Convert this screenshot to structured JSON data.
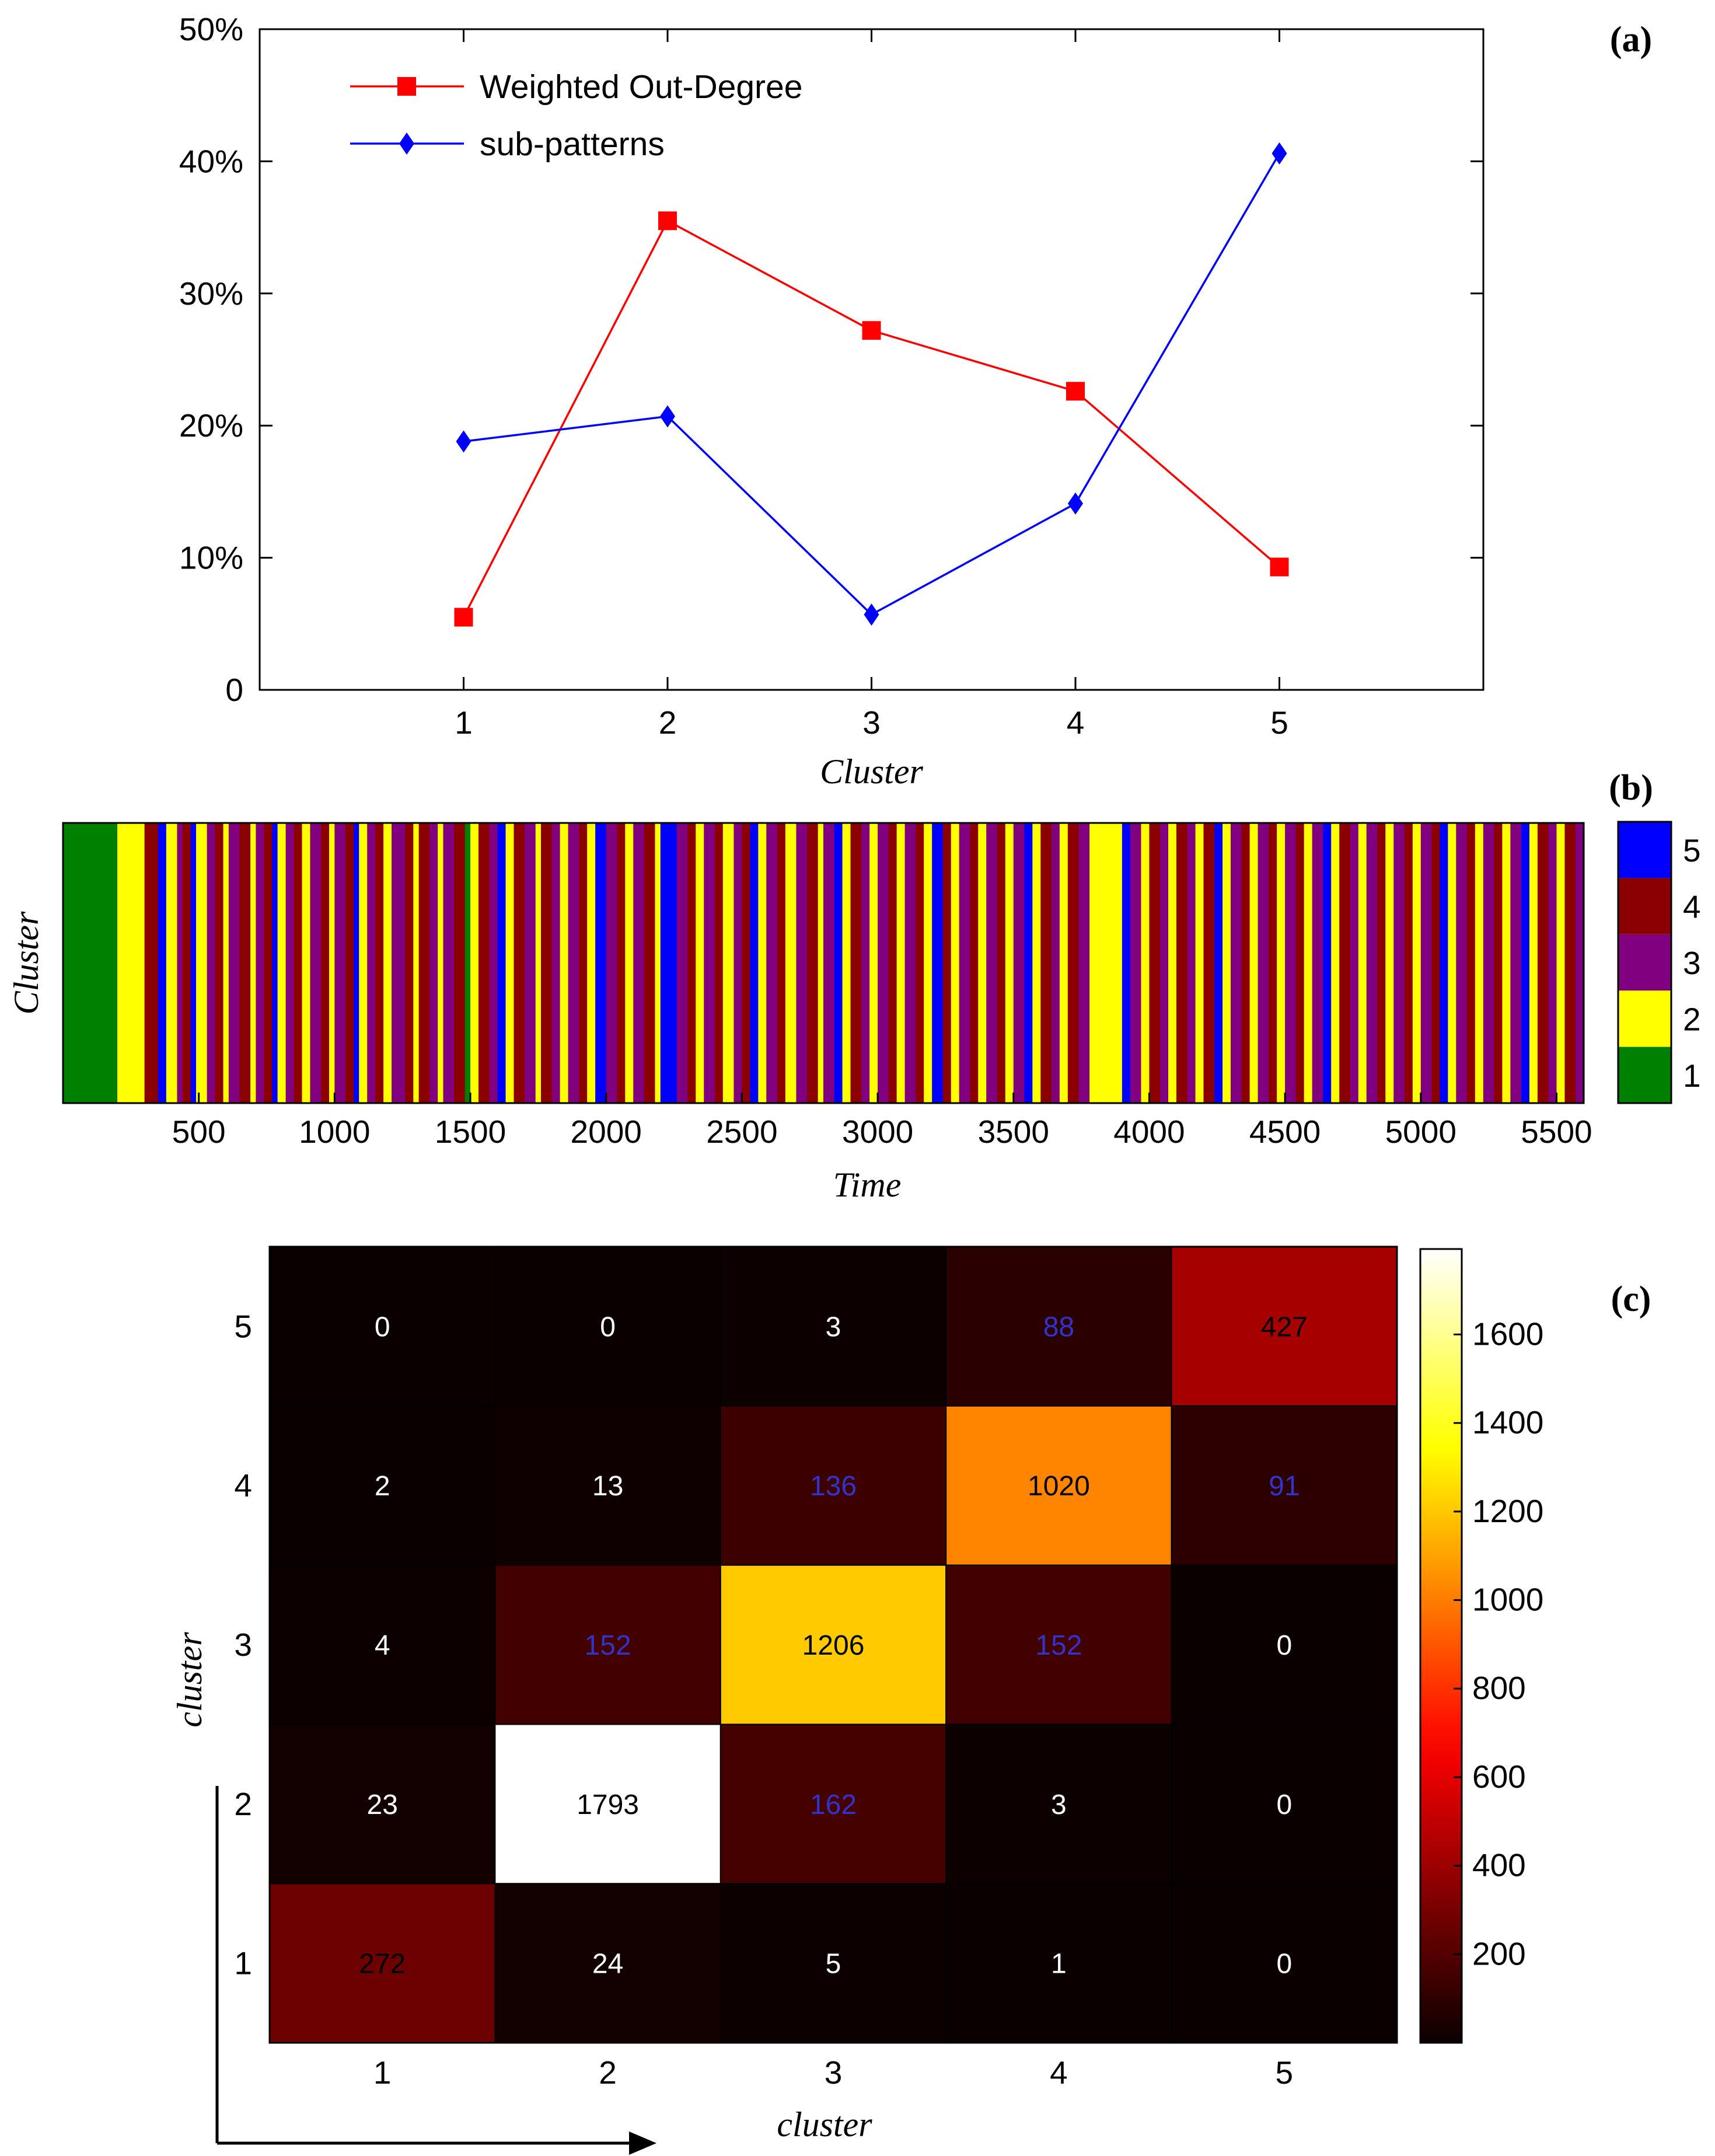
{
  "chart_data": [
    {
      "panel": "(a)",
      "type": "line",
      "x": [
        1,
        2,
        3,
        4,
        5
      ],
      "xlabel": "Cluster",
      "ylabel": "",
      "xlim": [
        0,
        6
      ],
      "ylim": [
        0,
        50
      ],
      "yticks": [
        "0",
        "10%",
        "20%",
        "30%",
        "40%",
        "50%"
      ],
      "xticks": [
        "1",
        "2",
        "3",
        "4",
        "5"
      ],
      "legend_position": "top-left",
      "series": [
        {
          "name": "Weighted Out-Degree",
          "color": "#ff0000",
          "marker": "square",
          "values": [
            5.5,
            35.5,
            27.2,
            22.6,
            9.3
          ]
        },
        {
          "name": "sub-patterns",
          "color": "#0000ff",
          "marker": "diamond",
          "values": [
            18.8,
            20.7,
            5.7,
            14.1,
            40.6
          ]
        }
      ]
    },
    {
      "panel": "(b)",
      "type": "heatmap",
      "title": "",
      "xlabel": "Time",
      "ylabel": "Cluster",
      "xlim": [
        0,
        5600
      ],
      "xticks": [
        "500",
        "1000",
        "1500",
        "2000",
        "2500",
        "3000",
        "3500",
        "4000",
        "4500",
        "5000",
        "5500"
      ],
      "colorbar_labels": [
        "1",
        "2",
        "3",
        "4",
        "5"
      ],
      "colors": {
        "1": "#008000",
        "2": "#ffff00",
        "3": "#800080",
        "4": "#8b0000",
        "5": "#0000ff"
      },
      "segments": [
        [
          0,
          200,
          1
        ],
        [
          200,
          300,
          2
        ],
        [
          300,
          350,
          4
        ],
        [
          350,
          380,
          5
        ],
        [
          380,
          420,
          2
        ],
        [
          420,
          440,
          3
        ],
        [
          440,
          470,
          4
        ],
        [
          470,
          490,
          5
        ],
        [
          490,
          530,
          2
        ],
        [
          530,
          560,
          3
        ],
        [
          560,
          590,
          4
        ],
        [
          590,
          610,
          2
        ],
        [
          610,
          650,
          3
        ],
        [
          650,
          690,
          4
        ],
        [
          690,
          710,
          2
        ],
        [
          710,
          740,
          3
        ],
        [
          740,
          770,
          4
        ],
        [
          770,
          790,
          5
        ],
        [
          790,
          820,
          2
        ],
        [
          820,
          850,
          3
        ],
        [
          850,
          880,
          4
        ],
        [
          880,
          910,
          2
        ],
        [
          910,
          950,
          3
        ],
        [
          950,
          980,
          4
        ],
        [
          980,
          1000,
          2
        ],
        [
          1000,
          1040,
          3
        ],
        [
          1040,
          1070,
          4
        ],
        [
          1070,
          1090,
          5
        ],
        [
          1090,
          1120,
          2
        ],
        [
          1120,
          1150,
          3
        ],
        [
          1150,
          1180,
          4
        ],
        [
          1180,
          1210,
          2
        ],
        [
          1210,
          1260,
          3
        ],
        [
          1260,
          1290,
          4
        ],
        [
          1290,
          1310,
          2
        ],
        [
          1310,
          1350,
          4
        ],
        [
          1350,
          1380,
          3
        ],
        [
          1380,
          1400,
          2
        ],
        [
          1400,
          1440,
          3
        ],
        [
          1440,
          1480,
          4
        ],
        [
          1480,
          1500,
          1
        ],
        [
          1500,
          1530,
          2
        ],
        [
          1530,
          1570,
          4
        ],
        [
          1570,
          1600,
          3
        ],
        [
          1600,
          1630,
          5
        ],
        [
          1630,
          1660,
          2
        ],
        [
          1660,
          1700,
          4
        ],
        [
          1700,
          1740,
          3
        ],
        [
          1740,
          1760,
          2
        ],
        [
          1760,
          1800,
          4
        ],
        [
          1800,
          1830,
          3
        ],
        [
          1830,
          1860,
          2
        ],
        [
          1860,
          1900,
          3
        ],
        [
          1900,
          1930,
          4
        ],
        [
          1930,
          1960,
          2
        ],
        [
          1960,
          2000,
          5
        ],
        [
          2000,
          2040,
          3
        ],
        [
          2040,
          2070,
          4
        ],
        [
          2070,
          2100,
          2
        ],
        [
          2100,
          2140,
          3
        ],
        [
          2140,
          2180,
          4
        ],
        [
          2180,
          2200,
          2
        ],
        [
          2200,
          2260,
          5
        ],
        [
          2260,
          2300,
          3
        ],
        [
          2300,
          2330,
          4
        ],
        [
          2330,
          2360,
          2
        ],
        [
          2360,
          2400,
          3
        ],
        [
          2400,
          2430,
          4
        ],
        [
          2430,
          2470,
          2
        ],
        [
          2470,
          2500,
          3
        ],
        [
          2500,
          2530,
          4
        ],
        [
          2530,
          2560,
          5
        ],
        [
          2560,
          2590,
          2
        ],
        [
          2590,
          2630,
          3
        ],
        [
          2630,
          2660,
          4
        ],
        [
          2660,
          2700,
          2
        ],
        [
          2700,
          2740,
          3
        ],
        [
          2740,
          2780,
          4
        ],
        [
          2780,
          2800,
          2
        ],
        [
          2800,
          2840,
          3
        ],
        [
          2840,
          2870,
          5
        ],
        [
          2870,
          2900,
          2
        ],
        [
          2900,
          2940,
          4
        ],
        [
          2940,
          2970,
          3
        ],
        [
          2970,
          3000,
          2
        ],
        [
          3000,
          3040,
          3
        ],
        [
          3040,
          3070,
          4
        ],
        [
          3070,
          3100,
          2
        ],
        [
          3100,
          3140,
          3
        ],
        [
          3140,
          3170,
          4
        ],
        [
          3170,
          3200,
          2
        ],
        [
          3200,
          3240,
          5
        ],
        [
          3240,
          3270,
          4
        ],
        [
          3270,
          3300,
          2
        ],
        [
          3300,
          3340,
          3
        ],
        [
          3340,
          3370,
          4
        ],
        [
          3370,
          3400,
          2
        ],
        [
          3400,
          3440,
          3
        ],
        [
          3440,
          3470,
          4
        ],
        [
          3470,
          3500,
          2
        ],
        [
          3500,
          3540,
          3
        ],
        [
          3540,
          3570,
          5
        ],
        [
          3570,
          3600,
          2
        ],
        [
          3600,
          3640,
          4
        ],
        [
          3640,
          3670,
          3
        ],
        [
          3670,
          3700,
          2
        ],
        [
          3700,
          3740,
          4
        ],
        [
          3740,
          3780,
          3
        ],
        [
          3780,
          3900,
          2
        ],
        [
          3900,
          3930,
          5
        ],
        [
          3930,
          3970,
          3
        ],
        [
          3970,
          4000,
          2
        ],
        [
          4000,
          4040,
          4
        ],
        [
          4040,
          4070,
          3
        ],
        [
          4070,
          4100,
          2
        ],
        [
          4100,
          4140,
          4
        ],
        [
          4140,
          4170,
          3
        ],
        [
          4170,
          4200,
          2
        ],
        [
          4200,
          4240,
          4
        ],
        [
          4240,
          4270,
          5
        ],
        [
          4270,
          4300,
          2
        ],
        [
          4300,
          4340,
          3
        ],
        [
          4340,
          4370,
          4
        ],
        [
          4370,
          4400,
          2
        ],
        [
          4400,
          4440,
          3
        ],
        [
          4440,
          4470,
          4
        ],
        [
          4470,
          4500,
          2
        ],
        [
          4500,
          4540,
          3
        ],
        [
          4540,
          4570,
          4
        ],
        [
          4570,
          4600,
          2
        ],
        [
          4600,
          4640,
          3
        ],
        [
          4640,
          4670,
          5
        ],
        [
          4670,
          4700,
          2
        ],
        [
          4700,
          4740,
          4
        ],
        [
          4740,
          4770,
          3
        ],
        [
          4770,
          4800,
          2
        ],
        [
          4800,
          4840,
          3
        ],
        [
          4840,
          4870,
          4
        ],
        [
          4870,
          4900,
          2
        ],
        [
          4900,
          4940,
          3
        ],
        [
          4940,
          4970,
          4
        ],
        [
          4970,
          5000,
          2
        ],
        [
          5000,
          5040,
          3
        ],
        [
          5040,
          5070,
          4
        ],
        [
          5070,
          5100,
          5
        ],
        [
          5100,
          5130,
          2
        ],
        [
          5130,
          5170,
          3
        ],
        [
          5170,
          5200,
          4
        ],
        [
          5200,
          5230,
          2
        ],
        [
          5230,
          5270,
          3
        ],
        [
          5270,
          5300,
          4
        ],
        [
          5300,
          5330,
          2
        ],
        [
          5330,
          5370,
          3
        ],
        [
          5370,
          5400,
          5
        ],
        [
          5400,
          5430,
          2
        ],
        [
          5430,
          5470,
          4
        ],
        [
          5470,
          5500,
          3
        ],
        [
          5500,
          5530,
          2
        ],
        [
          5530,
          5570,
          4
        ],
        [
          5570,
          5600,
          3
        ]
      ]
    },
    {
      "panel": "(c)",
      "type": "heatmap",
      "xlabel": "cluster",
      "ylabel": "cluster",
      "xticks": [
        "1",
        "2",
        "3",
        "4",
        "5"
      ],
      "yticks": [
        "1",
        "2",
        "3",
        "4",
        "5"
      ],
      "colorbar_range": [
        0,
        1793
      ],
      "colorbar_ticks": [
        "200",
        "400",
        "600",
        "800",
        "1000",
        "1200",
        "1400",
        "1600"
      ],
      "rows_bottom_to_top": [
        {
          "row": "1",
          "values": [
            272,
            24,
            5,
            1,
            0
          ]
        },
        {
          "row": "2",
          "values": [
            23,
            1793,
            162,
            3,
            0
          ]
        },
        {
          "row": "3",
          "values": [
            4,
            152,
            1206,
            152,
            0
          ]
        },
        {
          "row": "4",
          "values": [
            2,
            13,
            136,
            1020,
            91
          ]
        },
        {
          "row": "5",
          "values": [
            0,
            0,
            3,
            88,
            427
          ]
        }
      ]
    }
  ]
}
